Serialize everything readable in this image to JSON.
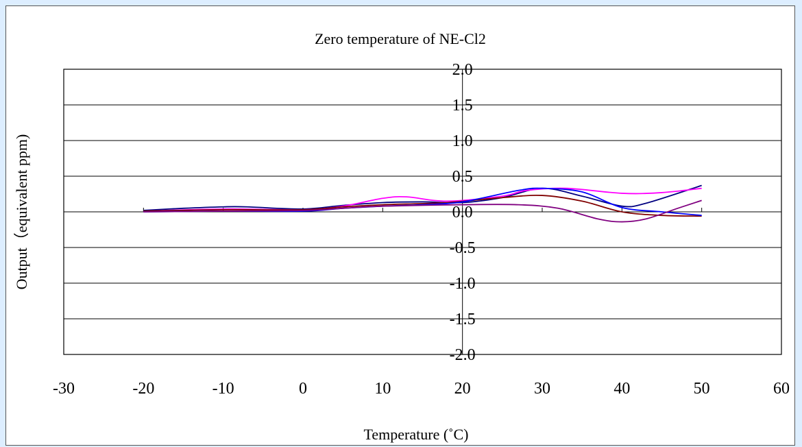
{
  "chart_data": {
    "type": "line",
    "title": "Zero temperature of NE-Cl2",
    "xlabel": "Temperature (˚C)",
    "ylabel": "Output（equivalent ppm)",
    "xlim": [
      -30,
      60
    ],
    "ylim": [
      -2.0,
      2.0
    ],
    "x_ticks": [
      "-30",
      "-20",
      "-10",
      "0",
      "10",
      "20",
      "30",
      "40",
      "50",
      "60"
    ],
    "y_ticks": [
      "2.0",
      "1.5",
      "1.0",
      "0.5",
      "0.0",
      "-0.5",
      "-1.0",
      "-1.5",
      "-2.0"
    ],
    "grid": "horizontal",
    "legend": "none",
    "series": [
      {
        "color": "#000080",
        "x": [
          -20,
          -15,
          -10,
          -7,
          0,
          5,
          10,
          15,
          20,
          25,
          30,
          35,
          40,
          43,
          50
        ],
        "values": [
          0.02,
          0.05,
          0.07,
          0.07,
          0.04,
          0.09,
          0.13,
          0.14,
          0.13,
          0.2,
          0.33,
          0.22,
          0.08,
          0.12,
          0.37
        ]
      },
      {
        "color": "#ff00ff",
        "x": [
          -20,
          -10,
          0,
          5,
          10,
          13,
          18,
          25,
          28,
          33,
          40,
          45,
          50
        ],
        "values": [
          0.01,
          0.04,
          0.03,
          0.08,
          0.19,
          0.21,
          0.15,
          0.22,
          0.3,
          0.33,
          0.26,
          0.27,
          0.33
        ]
      },
      {
        "color": "#800000",
        "x": [
          -20,
          -10,
          0,
          5,
          10,
          18,
          25,
          30,
          35,
          40,
          45,
          50
        ],
        "values": [
          0.01,
          0.03,
          0.03,
          0.07,
          0.1,
          0.13,
          0.2,
          0.23,
          0.15,
          0.0,
          -0.05,
          -0.06
        ]
      },
      {
        "color": "#0000ff",
        "x": [
          -20,
          -10,
          0,
          5,
          10,
          15,
          20,
          27,
          30,
          35,
          40,
          45,
          50
        ],
        "values": [
          0.0,
          0.01,
          0.01,
          0.05,
          0.08,
          0.1,
          0.14,
          0.3,
          0.33,
          0.28,
          0.06,
          0.0,
          -0.05
        ]
      },
      {
        "color": "#800080",
        "x": [
          -20,
          -10,
          0,
          5,
          10,
          20,
          27,
          32,
          37,
          40,
          43,
          47,
          50
        ],
        "values": [
          0.0,
          0.01,
          0.02,
          0.05,
          0.08,
          0.1,
          0.1,
          0.05,
          -0.1,
          -0.14,
          -0.1,
          0.05,
          0.16
        ]
      }
    ]
  }
}
